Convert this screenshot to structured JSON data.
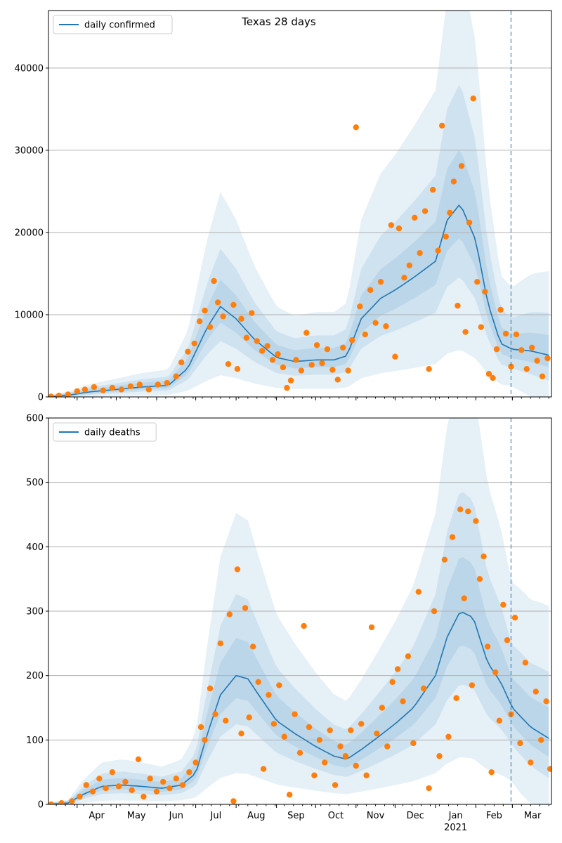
{
  "figure": {
    "title": "Texas 28 days"
  },
  "axis": {
    "months": [
      "Apr",
      "May",
      "Jun",
      "Jul",
      "Aug",
      "Sep",
      "Oct",
      "Nov",
      "Dec",
      "Jan",
      "Feb",
      "Mar"
    ],
    "year_label": "2021"
  },
  "colors": {
    "line": "#1f77b4",
    "points": "#ff7f0e",
    "band": "#1f77b4",
    "grid": "#b0b0b0",
    "vline": "#1f77b4"
  },
  "chart_data": [
    {
      "type": "line",
      "panel": "top",
      "title": "Texas 28 days",
      "xlabel": "",
      "ylabel": "",
      "x_range": [
        "2020-03-10",
        "2021-03-31"
      ],
      "ylim": [
        0,
        47000
      ],
      "yticks": [
        0,
        10000,
        20000,
        30000,
        40000
      ],
      "grid": "horizontal",
      "legend": {
        "location": "upper-left",
        "entries": [
          "daily confirmed"
        ]
      },
      "vertical_line": "2021-02-28",
      "series": [
        {
          "name": "daily confirmed",
          "x": [
            "2020-03-10",
            "2020-03-25",
            "2020-04-10",
            "2020-05-01",
            "2020-05-20",
            "2020-06-10",
            "2020-06-25",
            "2020-07-10",
            "2020-07-20",
            "2020-08-01",
            "2020-08-15",
            "2020-09-01",
            "2020-09-15",
            "2020-10-01",
            "2020-10-15",
            "2020-10-25",
            "2020-11-05",
            "2020-11-20",
            "2020-12-01",
            "2020-12-15",
            "2021-01-01",
            "2021-01-10",
            "2021-01-20",
            "2021-02-01",
            "2021-02-10",
            "2021-02-20",
            "2021-03-01",
            "2021-03-15",
            "2021-03-31"
          ],
          "values": [
            0,
            200,
            600,
            900,
            1200,
            1400,
            3500,
            8500,
            11000,
            9500,
            7000,
            4800,
            4300,
            4500,
            4500,
            5000,
            9500,
            12000,
            13000,
            14500,
            16500,
            21500,
            23500,
            19000,
            11500,
            6500,
            5800,
            5600,
            5000
          ]
        }
      ],
      "points": [
        {
          "x": "2020-03-12",
          "y": 50
        },
        {
          "x": "2020-03-18",
          "y": 150
        },
        {
          "x": "2020-03-25",
          "y": 300
        },
        {
          "x": "2020-04-01",
          "y": 700
        },
        {
          "x": "2020-04-07",
          "y": 900
        },
        {
          "x": "2020-04-14",
          "y": 1200
        },
        {
          "x": "2020-04-21",
          "y": 800
        },
        {
          "x": "2020-04-28",
          "y": 1100
        },
        {
          "x": "2020-05-05",
          "y": 900
        },
        {
          "x": "2020-05-12",
          "y": 1300
        },
        {
          "x": "2020-05-19",
          "y": 1500
        },
        {
          "x": "2020-05-26",
          "y": 900
        },
        {
          "x": "2020-06-02",
          "y": 1500
        },
        {
          "x": "2020-06-09",
          "y": 1700
        },
        {
          "x": "2020-06-16",
          "y": 2500
        },
        {
          "x": "2020-06-20",
          "y": 4200
        },
        {
          "x": "2020-06-25",
          "y": 5500
        },
        {
          "x": "2020-06-30",
          "y": 6500
        },
        {
          "x": "2020-07-04",
          "y": 9200
        },
        {
          "x": "2020-07-08",
          "y": 10500
        },
        {
          "x": "2020-07-12",
          "y": 8500
        },
        {
          "x": "2020-07-15",
          "y": 14100
        },
        {
          "x": "2020-07-18",
          "y": 11500
        },
        {
          "x": "2020-07-22",
          "y": 9800
        },
        {
          "x": "2020-07-26",
          "y": 4000
        },
        {
          "x": "2020-07-30",
          "y": 11200
        },
        {
          "x": "2020-08-02",
          "y": 3400
        },
        {
          "x": "2020-08-05",
          "y": 9500
        },
        {
          "x": "2020-08-09",
          "y": 7200
        },
        {
          "x": "2020-08-13",
          "y": 10200
        },
        {
          "x": "2020-08-17",
          "y": 6800
        },
        {
          "x": "2020-08-21",
          "y": 5600
        },
        {
          "x": "2020-08-25",
          "y": 6200
        },
        {
          "x": "2020-08-29",
          "y": 4500
        },
        {
          "x": "2020-09-02",
          "y": 5200
        },
        {
          "x": "2020-09-06",
          "y": 3600
        },
        {
          "x": "2020-09-09",
          "y": 1100
        },
        {
          "x": "2020-09-12",
          "y": 2000
        },
        {
          "x": "2020-09-16",
          "y": 4500
        },
        {
          "x": "2020-09-20",
          "y": 3200
        },
        {
          "x": "2020-09-24",
          "y": 7800
        },
        {
          "x": "2020-09-28",
          "y": 3900
        },
        {
          "x": "2020-10-02",
          "y": 6300
        },
        {
          "x": "2020-10-06",
          "y": 4100
        },
        {
          "x": "2020-10-10",
          "y": 5800
        },
        {
          "x": "2020-10-14",
          "y": 3300
        },
        {
          "x": "2020-10-18",
          "y": 2100
        },
        {
          "x": "2020-10-22",
          "y": 6000
        },
        {
          "x": "2020-10-26",
          "y": 3200
        },
        {
          "x": "2020-10-29",
          "y": 6900
        },
        {
          "x": "2020-11-01",
          "y": 32800
        },
        {
          "x": "2020-11-04",
          "y": 11000
        },
        {
          "x": "2020-11-08",
          "y": 7600
        },
        {
          "x": "2020-11-12",
          "y": 13000
        },
        {
          "x": "2020-11-16",
          "y": 9000
        },
        {
          "x": "2020-11-20",
          "y": 14000
        },
        {
          "x": "2020-11-24",
          "y": 8600
        },
        {
          "x": "2020-11-28",
          "y": 20900
        },
        {
          "x": "2020-12-01",
          "y": 4900
        },
        {
          "x": "2020-12-04",
          "y": 20500
        },
        {
          "x": "2020-12-08",
          "y": 14500
        },
        {
          "x": "2020-12-12",
          "y": 16000
        },
        {
          "x": "2020-12-16",
          "y": 21800
        },
        {
          "x": "2020-12-20",
          "y": 17500
        },
        {
          "x": "2020-12-24",
          "y": 22600
        },
        {
          "x": "2020-12-27",
          "y": 3400
        },
        {
          "x": "2020-12-30",
          "y": 25200
        },
        {
          "x": "2021-01-03",
          "y": 17800
        },
        {
          "x": "2021-01-06",
          "y": 33000
        },
        {
          "x": "2021-01-09",
          "y": 19500
        },
        {
          "x": "2021-01-12",
          "y": 22400
        },
        {
          "x": "2021-01-15",
          "y": 26200
        },
        {
          "x": "2021-01-18",
          "y": 11100
        },
        {
          "x": "2021-01-21",
          "y": 28100
        },
        {
          "x": "2021-01-24",
          "y": 7900
        },
        {
          "x": "2021-01-27",
          "y": 21200
        },
        {
          "x": "2021-01-30",
          "y": 36300
        },
        {
          "x": "2021-02-02",
          "y": 14000
        },
        {
          "x": "2021-02-05",
          "y": 8500
        },
        {
          "x": "2021-02-08",
          "y": 12800
        },
        {
          "x": "2021-02-11",
          "y": 2800
        },
        {
          "x": "2021-02-14",
          "y": 2300
        },
        {
          "x": "2021-02-17",
          "y": 5800
        },
        {
          "x": "2021-02-20",
          "y": 10600
        },
        {
          "x": "2021-02-24",
          "y": 7700
        },
        {
          "x": "2021-02-28",
          "y": 3700
        },
        {
          "x": "2021-03-04",
          "y": 7600
        },
        {
          "x": "2021-03-08",
          "y": 5700
        },
        {
          "x": "2021-03-12",
          "y": 3400
        },
        {
          "x": "2021-03-16",
          "y": 6000
        },
        {
          "x": "2021-03-20",
          "y": 4400
        },
        {
          "x": "2021-03-24",
          "y": 2500
        },
        {
          "x": "2021-03-28",
          "y": 4700
        }
      ]
    },
    {
      "type": "line",
      "panel": "bottom",
      "title": "",
      "xlabel": "",
      "ylabel": "",
      "x_range": [
        "2020-03-10",
        "2021-03-31"
      ],
      "ylim": [
        0,
        600
      ],
      "yticks": [
        0,
        100,
        200,
        300,
        400,
        500,
        600
      ],
      "grid": "horizontal",
      "legend": {
        "location": "upper-left",
        "entries": [
          "daily deaths"
        ]
      },
      "vertical_line": "2021-02-28",
      "series": [
        {
          "name": "daily deaths",
          "x": [
            "2020-03-10",
            "2020-03-25",
            "2020-04-05",
            "2020-04-20",
            "2020-05-05",
            "2020-05-20",
            "2020-06-05",
            "2020-06-20",
            "2020-07-01",
            "2020-07-10",
            "2020-07-20",
            "2020-08-01",
            "2020-08-10",
            "2020-08-20",
            "2020-09-01",
            "2020-09-15",
            "2020-10-01",
            "2020-10-15",
            "2020-10-25",
            "2020-11-05",
            "2020-11-15",
            "2020-12-01",
            "2020-12-15",
            "2021-01-01",
            "2021-01-10",
            "2021-01-20",
            "2021-01-30",
            "2021-02-10",
            "2021-02-20",
            "2021-03-01",
            "2021-03-15",
            "2021-03-31"
          ],
          "values": [
            0,
            2,
            15,
            28,
            30,
            28,
            25,
            30,
            48,
            110,
            170,
            200,
            195,
            165,
            130,
            110,
            90,
            75,
            70,
            85,
            100,
            125,
            150,
            200,
            260,
            300,
            290,
            220,
            190,
            150,
            120,
            100
          ]
        }
      ],
      "points": [
        {
          "x": "2020-03-12",
          "y": 0
        },
        {
          "x": "2020-03-20",
          "y": 2
        },
        {
          "x": "2020-03-28",
          "y": 5
        },
        {
          "x": "2020-04-03",
          "y": 12
        },
        {
          "x": "2020-04-08",
          "y": 30
        },
        {
          "x": "2020-04-13",
          "y": 20
        },
        {
          "x": "2020-04-18",
          "y": 40
        },
        {
          "x": "2020-04-23",
          "y": 25
        },
        {
          "x": "2020-04-28",
          "y": 50
        },
        {
          "x": "2020-05-03",
          "y": 28
        },
        {
          "x": "2020-05-08",
          "y": 35
        },
        {
          "x": "2020-05-13",
          "y": 22
        },
        {
          "x": "2020-05-18",
          "y": 70
        },
        {
          "x": "2020-05-22",
          "y": 12
        },
        {
          "x": "2020-05-27",
          "y": 40
        },
        {
          "x": "2020-06-01",
          "y": 20
        },
        {
          "x": "2020-06-06",
          "y": 35
        },
        {
          "x": "2020-06-11",
          "y": 25
        },
        {
          "x": "2020-06-16",
          "y": 40
        },
        {
          "x": "2020-06-21",
          "y": 30
        },
        {
          "x": "2020-06-26",
          "y": 50
        },
        {
          "x": "2020-07-01",
          "y": 65
        },
        {
          "x": "2020-07-05",
          "y": 120
        },
        {
          "x": "2020-07-08",
          "y": 100
        },
        {
          "x": "2020-07-12",
          "y": 180
        },
        {
          "x": "2020-07-16",
          "y": 140
        },
        {
          "x": "2020-07-20",
          "y": 250
        },
        {
          "x": "2020-07-24",
          "y": 130
        },
        {
          "x": "2020-07-27",
          "y": 295
        },
        {
          "x": "2020-07-30",
          "y": 5
        },
        {
          "x": "2020-08-02",
          "y": 365
        },
        {
          "x": "2020-08-05",
          "y": 110
        },
        {
          "x": "2020-08-08",
          "y": 305
        },
        {
          "x": "2020-08-11",
          "y": 135
        },
        {
          "x": "2020-08-14",
          "y": 245
        },
        {
          "x": "2020-08-18",
          "y": 190
        },
        {
          "x": "2020-08-22",
          "y": 55
        },
        {
          "x": "2020-08-26",
          "y": 170
        },
        {
          "x": "2020-08-30",
          "y": 125
        },
        {
          "x": "2020-09-03",
          "y": 185
        },
        {
          "x": "2020-09-07",
          "y": 105
        },
        {
          "x": "2020-09-11",
          "y": 15
        },
        {
          "x": "2020-09-15",
          "y": 140
        },
        {
          "x": "2020-09-19",
          "y": 80
        },
        {
          "x": "2020-09-22",
          "y": 277
        },
        {
          "x": "2020-09-26",
          "y": 120
        },
        {
          "x": "2020-09-30",
          "y": 45
        },
        {
          "x": "2020-10-04",
          "y": 100
        },
        {
          "x": "2020-10-08",
          "y": 65
        },
        {
          "x": "2020-10-12",
          "y": 115
        },
        {
          "x": "2020-10-16",
          "y": 30
        },
        {
          "x": "2020-10-20",
          "y": 90
        },
        {
          "x": "2020-10-24",
          "y": 75
        },
        {
          "x": "2020-10-28",
          "y": 115
        },
        {
          "x": "2020-11-01",
          "y": 60
        },
        {
          "x": "2020-11-05",
          "y": 125
        },
        {
          "x": "2020-11-09",
          "y": 45
        },
        {
          "x": "2020-11-13",
          "y": 275
        },
        {
          "x": "2020-11-17",
          "y": 110
        },
        {
          "x": "2020-11-21",
          "y": 150
        },
        {
          "x": "2020-11-25",
          "y": 90
        },
        {
          "x": "2020-11-29",
          "y": 190
        },
        {
          "x": "2020-12-03",
          "y": 210
        },
        {
          "x": "2020-12-07",
          "y": 160
        },
        {
          "x": "2020-12-11",
          "y": 230
        },
        {
          "x": "2020-12-15",
          "y": 95
        },
        {
          "x": "2020-12-19",
          "y": 330
        },
        {
          "x": "2020-12-23",
          "y": 180
        },
        {
          "x": "2020-12-27",
          "y": 25
        },
        {
          "x": "2020-12-31",
          "y": 300
        },
        {
          "x": "2021-01-04",
          "y": 75
        },
        {
          "x": "2021-01-08",
          "y": 380
        },
        {
          "x": "2021-01-11",
          "y": 105
        },
        {
          "x": "2021-01-14",
          "y": 415
        },
        {
          "x": "2021-01-17",
          "y": 165
        },
        {
          "x": "2021-01-20",
          "y": 458
        },
        {
          "x": "2021-01-23",
          "y": 320
        },
        {
          "x": "2021-01-26",
          "y": 455
        },
        {
          "x": "2021-01-29",
          "y": 185
        },
        {
          "x": "2021-02-01",
          "y": 440
        },
        {
          "x": "2021-02-04",
          "y": 350
        },
        {
          "x": "2021-02-07",
          "y": 385
        },
        {
          "x": "2021-02-10",
          "y": 245
        },
        {
          "x": "2021-02-13",
          "y": 50
        },
        {
          "x": "2021-02-16",
          "y": 205
        },
        {
          "x": "2021-02-19",
          "y": 130
        },
        {
          "x": "2021-02-22",
          "y": 310
        },
        {
          "x": "2021-02-25",
          "y": 255
        },
        {
          "x": "2021-02-28",
          "y": 140
        },
        {
          "x": "2021-03-03",
          "y": 290
        },
        {
          "x": "2021-03-07",
          "y": 95
        },
        {
          "x": "2021-03-11",
          "y": 220
        },
        {
          "x": "2021-03-15",
          "y": 65
        },
        {
          "x": "2021-03-19",
          "y": 175
        },
        {
          "x": "2021-03-23",
          "y": 100
        },
        {
          "x": "2021-03-27",
          "y": 160
        },
        {
          "x": "2021-03-30",
          "y": 55
        }
      ]
    }
  ]
}
